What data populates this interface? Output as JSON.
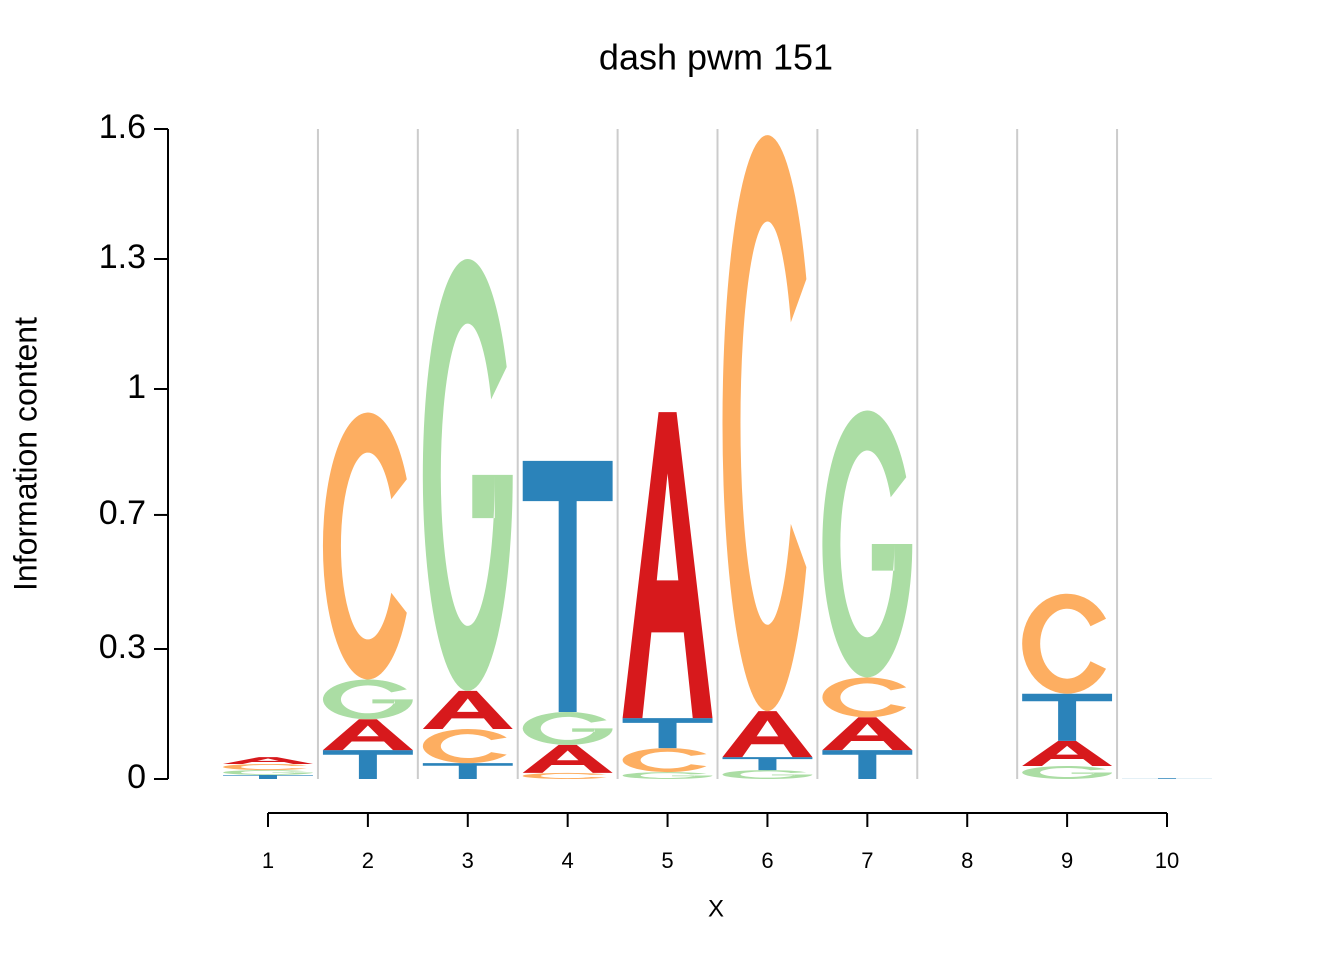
{
  "chart_data": {
    "type": "logo",
    "title": "dash pwm 151",
    "xlabel": "X",
    "ylabel": "Information content",
    "x": [
      1,
      2,
      3,
      4,
      5,
      6,
      7,
      8,
      9,
      10
    ],
    "xlim": [
      1,
      10
    ],
    "xticks": [
      1,
      2,
      3,
      4,
      5,
      6,
      7,
      8,
      9,
      10
    ],
    "ylim": [
      0,
      1.6
    ],
    "yticks": [
      0,
      {
        "value": 0.32,
        "label": "0.3"
      },
      {
        "value": 0.65,
        "label": "0.7"
      },
      {
        "value": 0.96,
        "label": "1"
      },
      {
        "value": 1.28,
        "label": "1.3"
      },
      1.6
    ],
    "series": [
      {
        "name": "A",
        "color": "#d7191c",
        "values": [
          0.017,
          0.076,
          0.094,
          0.069,
          0.753,
          0.113,
          0.081,
          0,
          0.062,
          0
        ]
      },
      {
        "name": "C",
        "color": "#fdae61",
        "values": [
          0.015,
          0.657,
          0.084,
          0.015,
          0.059,
          1.418,
          0.098,
          0,
          0.246,
          0
        ]
      },
      {
        "name": "G",
        "color": "#abdda4",
        "values": [
          0.012,
          0.098,
          1.063,
          0.081,
          0.017,
          0.022,
          0.657,
          0,
          0.032,
          0
        ]
      },
      {
        "name": "T",
        "color": "#2b83ba",
        "values": [
          0.01,
          0.071,
          0.039,
          0.618,
          0.074,
          0.032,
          0.071,
          0,
          0.116,
          0.002
        ]
      }
    ]
  }
}
